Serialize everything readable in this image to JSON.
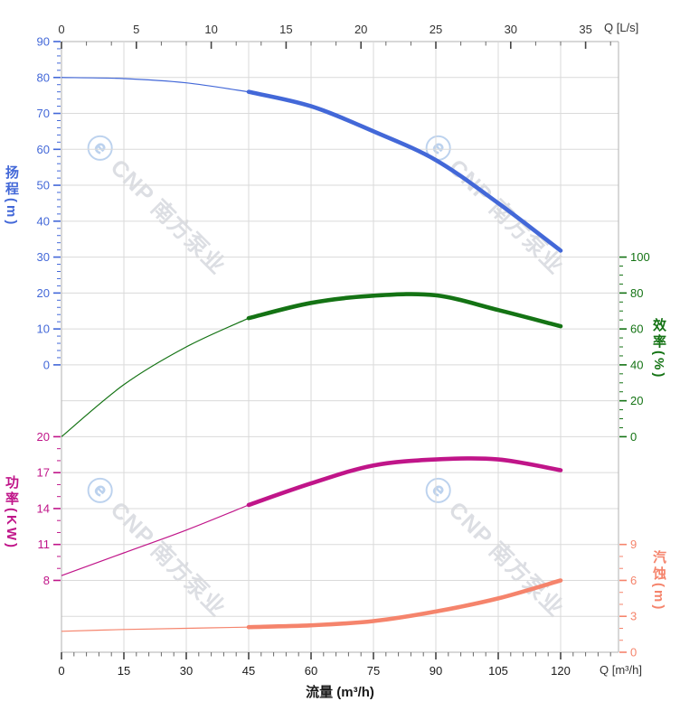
{
  "chart_data": {
    "type": "line",
    "x": [
      0,
      15,
      30,
      45,
      60,
      75,
      90,
      105,
      120
    ],
    "x_axis": {
      "bottom": {
        "title": "流量 (m³/h)",
        "unit": "Q [m³/h]",
        "ticks": [
          0,
          15,
          30,
          45,
          60,
          75,
          90,
          105,
          120
        ],
        "minor_step": 3,
        "max": 133,
        "label_color": "#1a1a1a"
      },
      "top": {
        "unit": "Q [L/s]",
        "ticks": [
          0,
          5,
          10,
          15,
          20,
          25,
          30,
          35
        ],
        "minor_step": 1.6667,
        "max": 37,
        "label_color": "#333333"
      }
    },
    "y_axes": {
      "head": {
        "title": "扬程(m)",
        "color": "#4368d8",
        "side": "left",
        "ticks": [
          90,
          80,
          70,
          60,
          50,
          40,
          30,
          20,
          10,
          0
        ],
        "minor_step": 2,
        "range": [
          0,
          90
        ]
      },
      "eff": {
        "title": "效率(%)",
        "color": "#147314",
        "side": "right",
        "ticks": [
          100,
          80,
          60,
          40,
          20,
          0
        ],
        "minor_step": 5,
        "range": [
          0,
          100
        ]
      },
      "power": {
        "title": "功率(KW)",
        "color": "#c01589",
        "side": "left",
        "ticks": [
          20,
          17,
          14,
          11,
          8
        ],
        "minor_step": 1,
        "range": [
          8,
          20
        ]
      },
      "npsh": {
        "title": "汽蚀(m)",
        "color": "#f5846c",
        "side": "right",
        "ticks": [
          9,
          6,
          3,
          0
        ],
        "minor_step": 1,
        "range": [
          0,
          9
        ]
      }
    },
    "series": [
      {
        "name": "扬程",
        "key": "head",
        "axis": "head",
        "color": "#4368d8",
        "highlight_from": 45,
        "values": [
          80,
          79.7,
          78.5,
          76,
          72,
          65,
          57,
          45,
          31.8
        ]
      },
      {
        "name": "效率",
        "key": "eff",
        "axis": "eff",
        "color": "#147314",
        "highlight_from": 45,
        "values": [
          0,
          29,
          50,
          66,
          74.5,
          78.5,
          78.7,
          70.5,
          61.5
        ]
      },
      {
        "name": "功率",
        "key": "power",
        "axis": "power",
        "color": "#c01589",
        "highlight_from": 45,
        "values": [
          8.4,
          10.3,
          12.2,
          14.3,
          16.1,
          17.6,
          18.1,
          18.1,
          17.2
        ]
      },
      {
        "name": "汽蚀",
        "key": "npsh",
        "axis": "npsh",
        "color": "#f5846c",
        "highlight_from": 45,
        "values": [
          1.75,
          1.9,
          2.0,
          2.1,
          2.25,
          2.6,
          3.4,
          4.5,
          6.0
        ]
      }
    ],
    "grid": true,
    "legend_position": "none",
    "watermark": {
      "logo": "ⓔ",
      "text": "CNP 南方泵业",
      "logo_color": "#bcd2ee",
      "text_color": "#dcdee3"
    }
  }
}
